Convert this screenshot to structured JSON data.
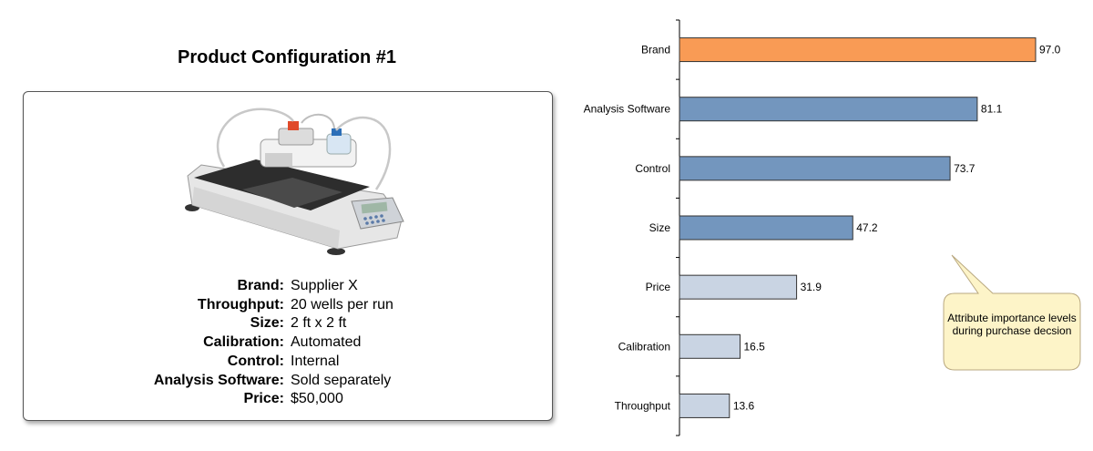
{
  "config": {
    "title": "Product Configuration #1",
    "attributes": [
      {
        "label": "Brand:",
        "value": "Supplier X"
      },
      {
        "label": "Throughput:",
        "value": "20 wells per run"
      },
      {
        "label": "Size:",
        "value": "2 ft x 2 ft"
      },
      {
        "label": "Calibration:",
        "value": "Automated"
      },
      {
        "label": "Control:",
        "value": "Internal"
      },
      {
        "label": "Analysis Software:",
        "value": "Sold separately"
      },
      {
        "label": "Price:",
        "value": "$50,000"
      }
    ]
  },
  "chart_data": {
    "type": "bar",
    "orientation": "horizontal",
    "categories": [
      "Brand",
      "Analysis Software",
      "Control",
      "Size",
      "Price",
      "Calibration",
      "Throughput"
    ],
    "values": [
      97.0,
      81.1,
      73.7,
      47.2,
      31.9,
      16.5,
      13.6
    ],
    "value_labels": [
      "97.0",
      "81.1",
      "73.7",
      "47.2",
      "31.9",
      "16.5",
      "13.6"
    ],
    "bar_colors": [
      "#f99b55",
      "#7396be",
      "#7396be",
      "#7396be",
      "#c9d4e3",
      "#c9d4e3",
      "#c9d4e3"
    ],
    "xlim": [
      0,
      100
    ],
    "grid": false,
    "annotation": "Attribute importance levels during purchase decsion"
  },
  "colors": {
    "highlight": "#f99b55",
    "high": "#7396be",
    "low": "#c9d4e3",
    "callout_fill": "#fdf4c8",
    "callout_stroke": "#b9a880"
  }
}
